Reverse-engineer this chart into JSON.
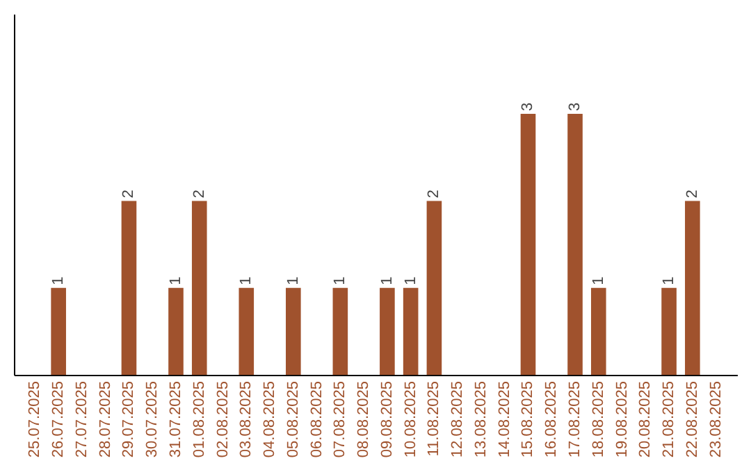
{
  "chart_data": {
    "type": "bar",
    "categories": [
      "25.07.2025",
      "26.07.2025",
      "27.07.2025",
      "28.07.2025",
      "29.07.2025",
      "30.07.2025",
      "31.07.2025",
      "01.08.2025",
      "02.08.2025",
      "03.08.2025",
      "04.08.2025",
      "05.08.2025",
      "06.08.2025",
      "07.08.2025",
      "08.08.2025",
      "09.08.2025",
      "10.08.2025",
      "11.08.2025",
      "12.08.2025",
      "13.08.2025",
      "14.08.2025",
      "15.08.2025",
      "16.08.2025",
      "17.08.2025",
      "18.08.2025",
      "19.08.2025",
      "20.08.2025",
      "21.08.2025",
      "22.08.2025",
      "23.08.2025"
    ],
    "values": [
      0,
      1,
      0,
      0,
      2,
      0,
      1,
      2,
      0,
      1,
      0,
      1,
      0,
      1,
      0,
      1,
      1,
      2,
      0,
      0,
      0,
      3,
      0,
      3,
      1,
      0,
      0,
      1,
      2,
      0
    ],
    "value_labels": [
      null,
      "1",
      null,
      null,
      "2",
      null,
      "1",
      "2",
      null,
      "1",
      null,
      "1",
      null,
      "1",
      null,
      "1",
      "1",
      "2",
      null,
      null,
      null,
      "3",
      null,
      "3",
      "1",
      null,
      null,
      "1",
      "2",
      null
    ],
    "color": "#a0522d",
    "ylim": [
      0,
      4.15
    ],
    "tick_labels": "x"
  }
}
